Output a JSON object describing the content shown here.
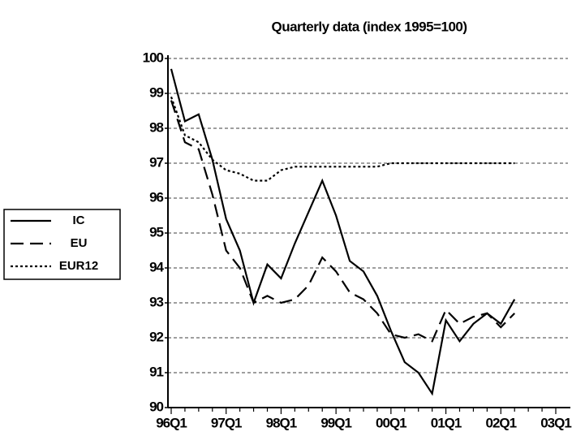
{
  "chart_data": {
    "type": "line",
    "title": "Quarterly data (index 1995=100)",
    "categories": [
      "96Q1",
      null,
      null,
      null,
      "97Q1",
      null,
      null,
      null,
      "98Q1",
      null,
      null,
      null,
      "99Q1",
      null,
      null,
      null,
      "00Q1",
      null,
      null,
      null,
      "01Q1",
      null,
      null,
      null,
      "02Q1",
      null,
      null,
      null,
      "03Q1"
    ],
    "series": [
      {
        "name": "IC",
        "color": "#000000",
        "style": "solid",
        "values": [
          99.7,
          98.2,
          98.4,
          97.1,
          95.4,
          94.5,
          93.0,
          94.1,
          93.7,
          94.7,
          95.6,
          96.5,
          95.5,
          94.2,
          93.9,
          93.2,
          92.2,
          91.3,
          91.0,
          90.4,
          92.5,
          91.9,
          92.4,
          92.7,
          92.4,
          93.1,
          null,
          null,
          null
        ]
      },
      {
        "name": "EU",
        "color": "#000000",
        "style": "dashed",
        "values": [
          98.8,
          97.6,
          97.4,
          96.1,
          94.5,
          94.0,
          93.0,
          93.2,
          93.0,
          93.1,
          93.5,
          94.3,
          93.9,
          93.3,
          93.1,
          92.7,
          92.1,
          92.0,
          92.1,
          91.9,
          92.8,
          92.4,
          92.6,
          92.7,
          92.3,
          92.7,
          null,
          null,
          null
        ]
      },
      {
        "name": "EUR12",
        "color": "#000000",
        "style": "dotted",
        "values": [
          98.9,
          97.8,
          97.6,
          97.1,
          96.8,
          96.7,
          96.5,
          96.5,
          96.8,
          96.9,
          96.9,
          96.9,
          96.9,
          96.9,
          96.9,
          96.9,
          97.0,
          97.0,
          97.0,
          97.0,
          97.0,
          97.0,
          97.0,
          97.0,
          97.0,
          97.0,
          null,
          null,
          null
        ]
      }
    ],
    "ylim": [
      90,
      100
    ],
    "yticks": [
      90,
      91,
      92,
      93,
      94,
      95,
      96,
      97,
      98,
      99,
      100
    ],
    "grid": true,
    "legend": "left"
  }
}
